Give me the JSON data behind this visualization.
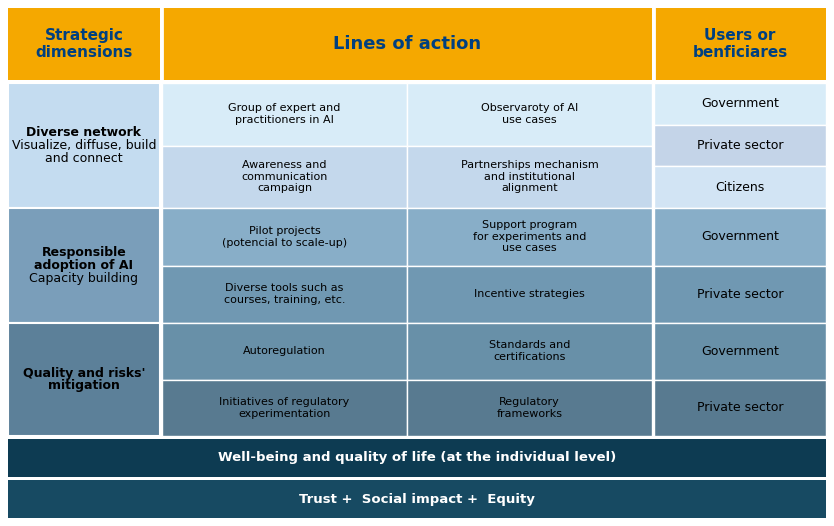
{
  "colors": {
    "orange_header": "#F5A800",
    "dark_blue_text": "#004080",
    "light_blue_section": "#C8DFF0",
    "light_blue_cell1": "#D8ECF8",
    "light_blue_cell2": "#C0D8EC",
    "medium_blue_section": "#7A9EBA",
    "medium_blue_cell1": "#8AB0C8",
    "medium_blue_cell2": "#709AB4",
    "dark_blue_section": "#5C8099",
    "dark_blue_cell1": "#6890A8",
    "dark_blue_cell2": "#587A90",
    "footer1_bg": "#0D3B52",
    "footer2_bg": "#174A62",
    "white": "#FFFFFF",
    "black": "#000000",
    "outer_bg": "#FFFFFF"
  },
  "header": {
    "col1": "Strategic\ndimensions",
    "col2": "Lines of action",
    "col3": "Users or\nbenficiares"
  },
  "rows": [
    {
      "section_bold": "Diverse network",
      "section_normal": "Visualize, diffuse, build\nand connect",
      "cells": [
        [
          "Group of expert and\npractitioners in AI",
          "Observaroty of AI\nuse cases"
        ],
        [
          "Awareness and\ncommunication\ncampaign",
          "Partnerships mechanism\nand institutional\nalignment"
        ]
      ],
      "beneficiares": [
        "Government",
        "Private sector",
        "Citizens"
      ]
    },
    {
      "section_bold": "Responsible\nadoption of AI",
      "section_normal": "Capacity building",
      "cells": [
        [
          "Pilot projects\n(potencial to scale-up)",
          "Support program\nfor experiments and\nuse cases"
        ],
        [
          "Diverse tools such as\ncourses, training, etc.",
          "Incentive strategies"
        ]
      ],
      "beneficiares": [
        "Government",
        "Private sector"
      ]
    },
    {
      "section_bold": "Quality and risks'\nmitigation",
      "section_normal": "",
      "cells": [
        [
          "Autoregulation",
          "Standards and\ncertifications"
        ],
        [
          "Initiatives of regulatory\nexperimentation",
          "Regulatory\nframeworks"
        ]
      ],
      "beneficiares": [
        "Government",
        "Private sector"
      ]
    }
  ],
  "footer1_text": "Well-being and quality of life (at the individual level)",
  "footer2_text": "Trust +  Social impact +  Equity"
}
